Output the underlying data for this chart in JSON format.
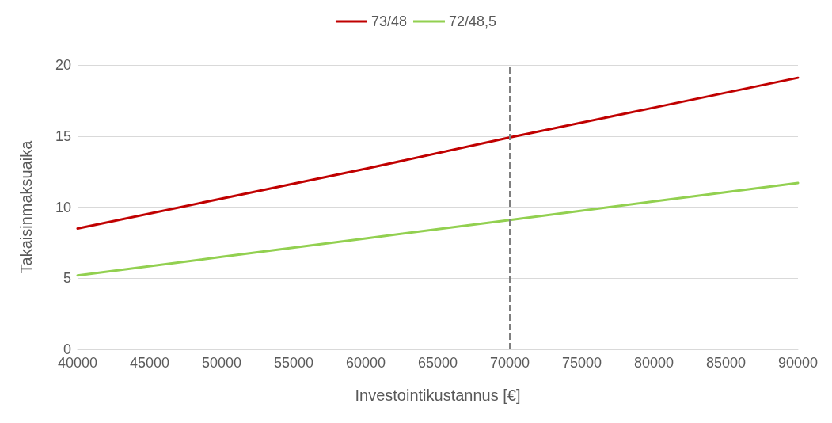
{
  "chart_data": {
    "type": "line",
    "xlabel": "Investointikustannus [€]",
    "ylabel": "Takaisinmaksuaika",
    "x": [
      40000,
      50000,
      60000,
      70000,
      80000,
      90000
    ],
    "series": [
      {
        "name": "73/48",
        "color": "#c00000",
        "values": [
          8.5,
          10.6,
          12.7,
          14.9,
          17.0,
          19.1
        ]
      },
      {
        "name": "72/48,5",
        "color": "#92d050",
        "values": [
          5.2,
          6.5,
          7.8,
          9.1,
          10.4,
          11.7
        ]
      }
    ],
    "xlim": [
      40000,
      90000
    ],
    "xticks": [
      40000,
      45000,
      50000,
      55000,
      60000,
      65000,
      70000,
      75000,
      80000,
      85000,
      90000
    ],
    "ylim": [
      0,
      20
    ],
    "yticks": [
      0,
      5,
      10,
      15,
      20
    ],
    "ref_lines": [
      {
        "axis": "x",
        "value": 70000,
        "color": "#7f7f7f",
        "line_style": "dashed"
      }
    ],
    "grid": "y",
    "legend": "top",
    "marker": "none",
    "line_style": "solid"
  }
}
